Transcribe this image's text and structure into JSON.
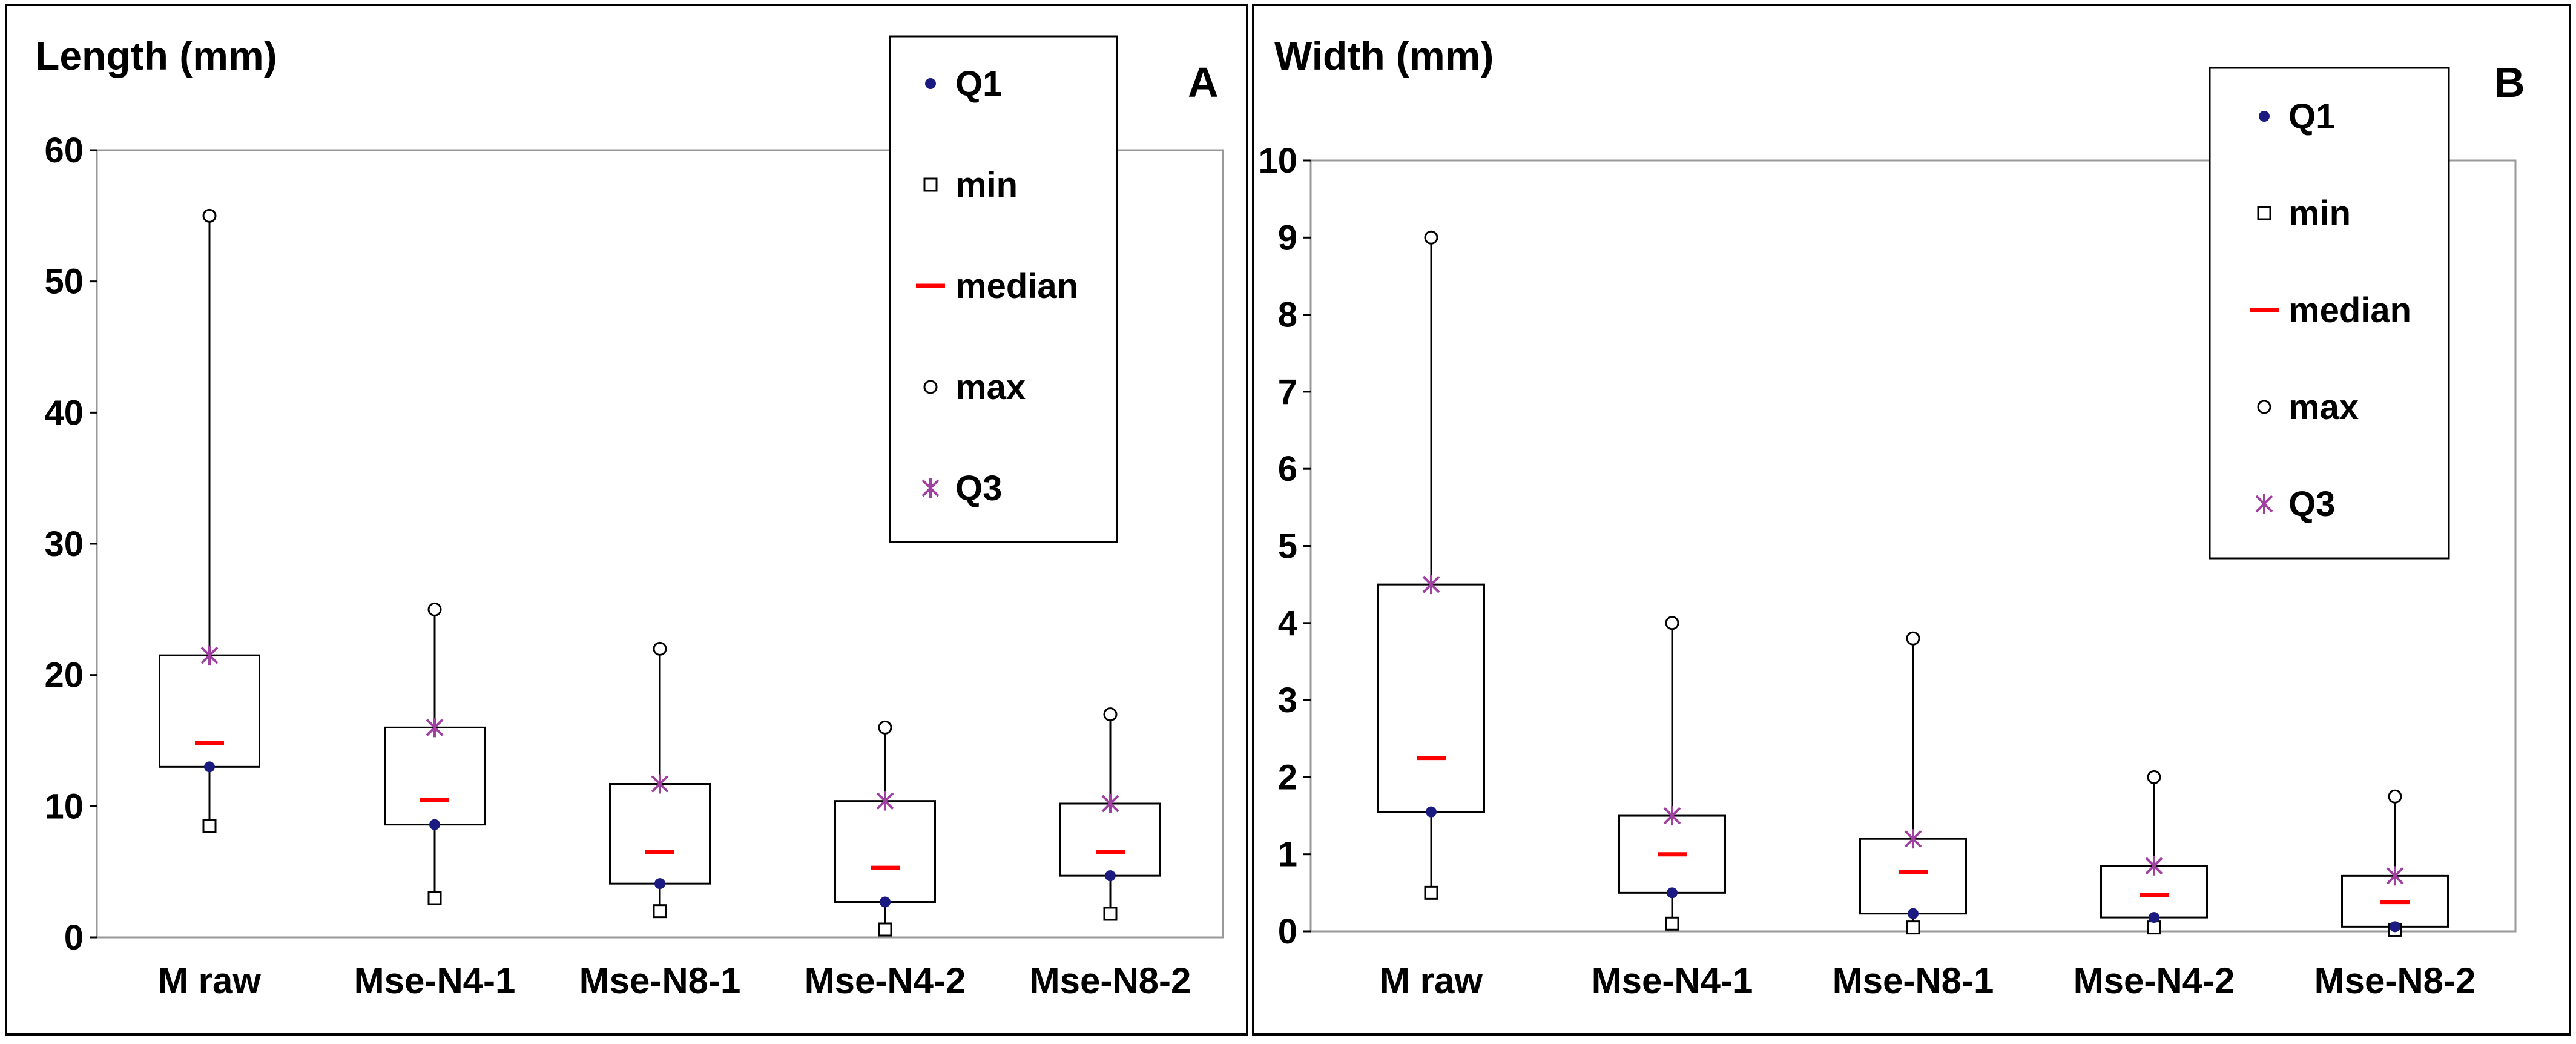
{
  "chart_data": [
    {
      "type": "box",
      "panel_label": "A",
      "title": "Length (mm)",
      "ylim": [
        0,
        60
      ],
      "yticks": [
        "0",
        "10",
        "20",
        "30",
        "40",
        "50",
        "60"
      ],
      "grid": false,
      "legend_position": "top-right",
      "categories": [
        "M raw",
        "Mse-N4-1",
        "Mse-N8-1",
        "Mse-N4-2",
        "Mse-N8-2"
      ],
      "series": [
        {
          "name": "Q1",
          "values": [
            13,
            8.6,
            4.1,
            2.7,
            4.7
          ]
        },
        {
          "name": "min",
          "values": [
            8.5,
            3,
            2,
            0.6,
            1.8
          ]
        },
        {
          "name": "median",
          "values": [
            14.8,
            10.5,
            6.5,
            5.3,
            6.5
          ]
        },
        {
          "name": "max",
          "values": [
            55,
            25,
            22,
            16,
            17
          ]
        },
        {
          "name": "Q3",
          "values": [
            21.5,
            16,
            11.7,
            10.4,
            10.2
          ]
        }
      ]
    },
    {
      "type": "box",
      "panel_label": "B",
      "title": "Width (mm)",
      "ylim": [
        0,
        10
      ],
      "yticks": [
        "0",
        "1",
        "2",
        "3",
        "4",
        "5",
        "6",
        "7",
        "8",
        "9",
        "10"
      ],
      "grid": false,
      "legend_position": "top-right",
      "categories": [
        "M raw",
        "Mse-N4-1",
        "Mse-N8-1",
        "Mse-N4-2",
        "Mse-N8-2"
      ],
      "series": [
        {
          "name": "Q1",
          "values": [
            1.55,
            0.5,
            0.23,
            0.18,
            0.06
          ]
        },
        {
          "name": "min",
          "values": [
            0.5,
            0.1,
            0.05,
            0.05,
            0.02
          ]
        },
        {
          "name": "median",
          "values": [
            2.25,
            1.0,
            0.77,
            0.47,
            0.38
          ]
        },
        {
          "name": "max",
          "values": [
            9.0,
            4.0,
            3.8,
            2.0,
            1.75
          ]
        },
        {
          "name": "Q3",
          "values": [
            4.5,
            1.5,
            1.2,
            0.85,
            0.72
          ]
        }
      ]
    }
  ],
  "colors": {
    "q1": "#1a1a80",
    "min": "#000000",
    "median": "#ff0000",
    "max": "#000000",
    "q3": "#a040a0"
  }
}
